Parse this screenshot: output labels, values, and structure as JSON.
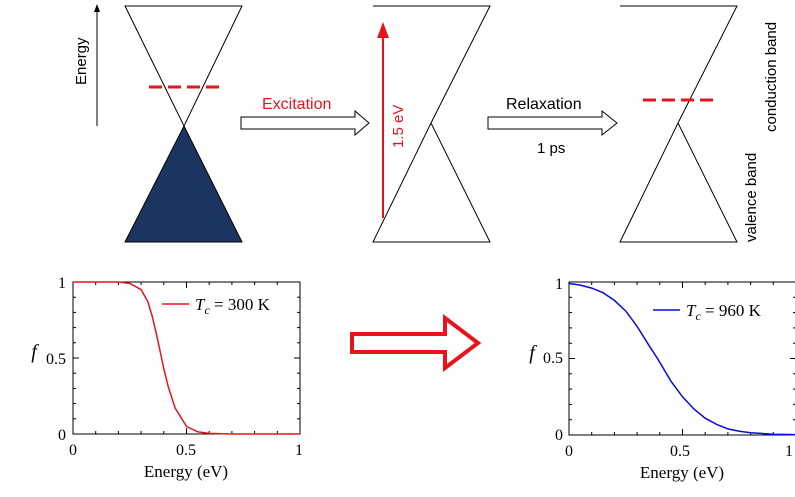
{
  "diagram": {
    "energy_axis_label": "Energy",
    "excitation_label": "Excitation",
    "excitation_energy_label": "1.5 eV",
    "relaxation_label": "Relaxation",
    "relaxation_time_label": "1 ps",
    "conduction_band_label": "conduction band",
    "valence_band_label": "valence band",
    "colors": {
      "filled_band": "#1b3560",
      "excitation": "#e8141b",
      "fermi_level": "#e8141b",
      "outline": "#000000"
    }
  },
  "chart_data": [
    {
      "type": "line",
      "ylabel": "f",
      "xlabel": "Energy (eV)",
      "xlim": [
        0,
        1
      ],
      "ylim": [
        0,
        1
      ],
      "x_ticks": [
        "0",
        "0.5",
        "1"
      ],
      "y_ticks": [
        "0",
        "0.5",
        "1"
      ],
      "series": [
        {
          "name_prefix": "T",
          "name_subscript": "c",
          "name_suffix": " = 300 K",
          "color": "#e8141b",
          "x": [
            0,
            0.1,
            0.2,
            0.25,
            0.3,
            0.33,
            0.35,
            0.37,
            0.38,
            0.39,
            0.4,
            0.42,
            0.45,
            0.5,
            0.55,
            0.6,
            0.7,
            0.8,
            0.9,
            1.0
          ],
          "y": [
            1.0,
            1.0,
            1.0,
            0.99,
            0.95,
            0.87,
            0.77,
            0.64,
            0.57,
            0.5,
            0.43,
            0.31,
            0.17,
            0.05,
            0.014,
            0.004,
            0,
            0,
            0,
            0
          ]
        }
      ]
    },
    {
      "type": "line",
      "ylabel": "f",
      "xlabel": "Energy (eV)",
      "xlim": [
        0,
        1
      ],
      "ylim": [
        0,
        1
      ],
      "x_ticks": [
        "0",
        "0.5",
        "1"
      ],
      "y_ticks": [
        "0",
        "0.5",
        "1"
      ],
      "series": [
        {
          "name_prefix": "T",
          "name_subscript": "c",
          "name_suffix": " = 960 K",
          "color": "#0a0adc",
          "x": [
            0,
            0.05,
            0.1,
            0.15,
            0.2,
            0.25,
            0.3,
            0.35,
            0.39,
            0.45,
            0.5,
            0.55,
            0.6,
            0.65,
            0.7,
            0.75,
            0.8,
            0.9,
            1.0
          ],
          "y": [
            0.99,
            0.98,
            0.96,
            0.93,
            0.88,
            0.81,
            0.71,
            0.59,
            0.5,
            0.35,
            0.25,
            0.17,
            0.11,
            0.07,
            0.04,
            0.025,
            0.015,
            0.005,
            0.002
          ]
        }
      ]
    }
  ]
}
